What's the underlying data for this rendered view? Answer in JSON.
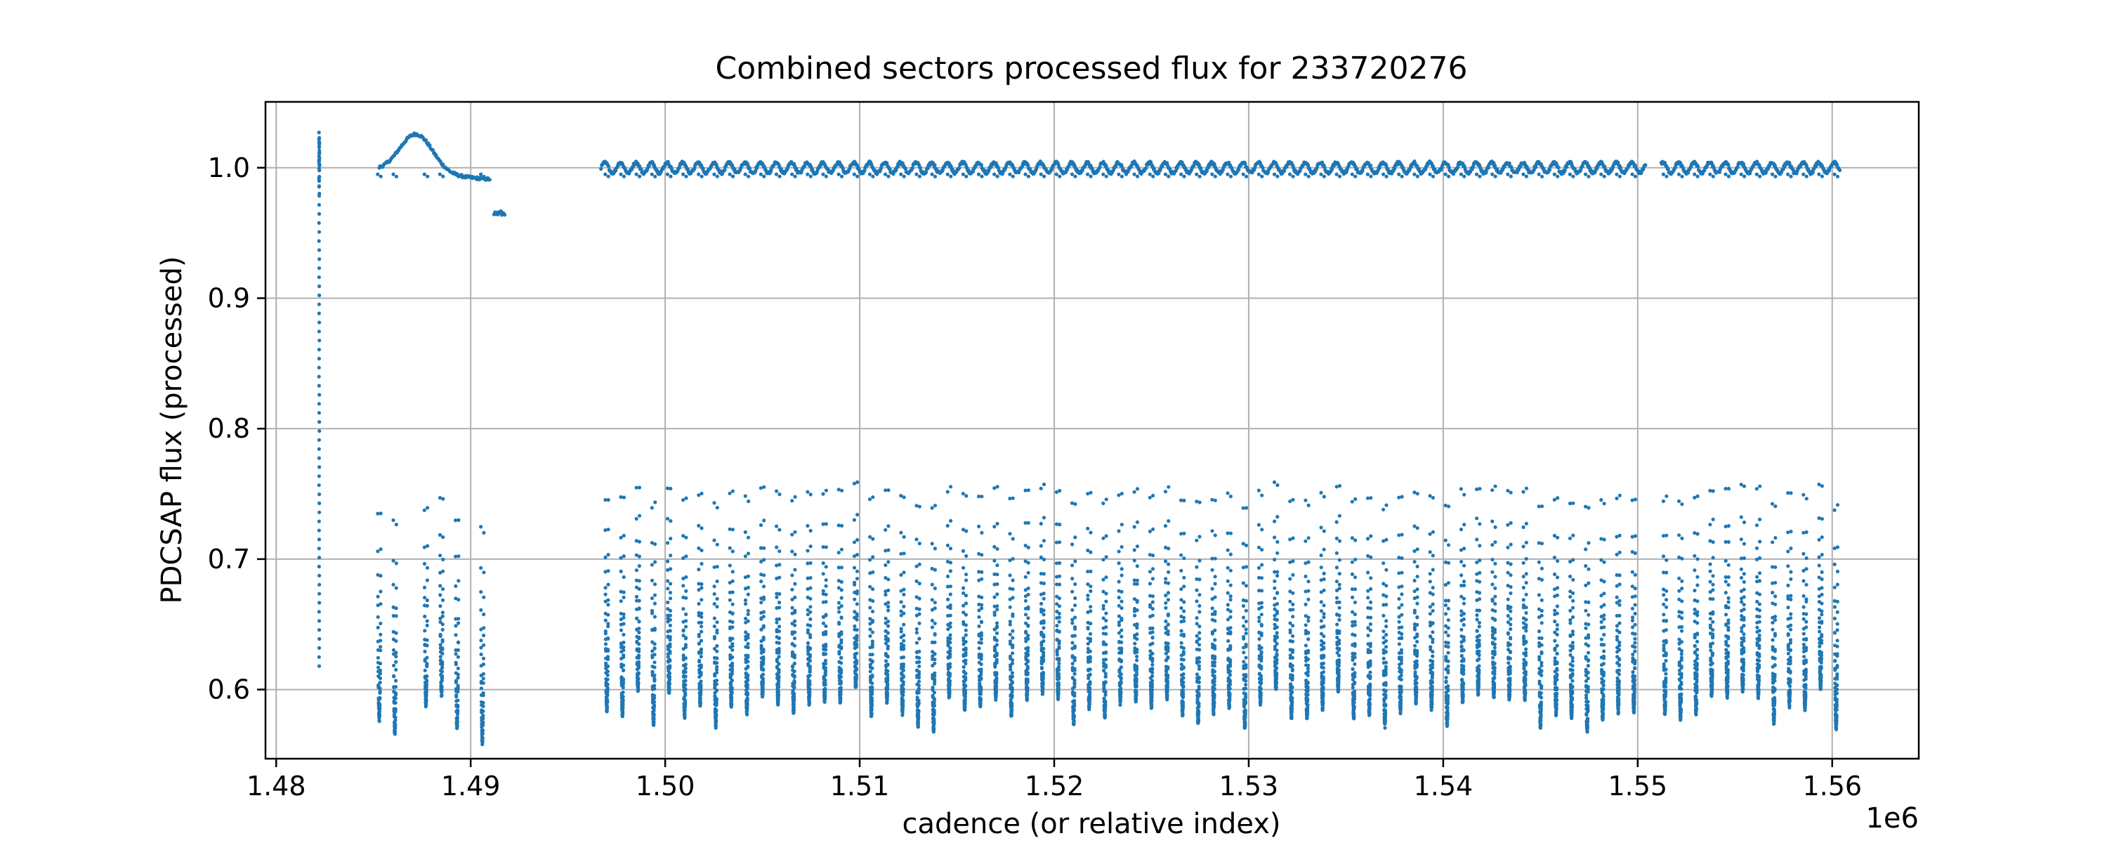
{
  "chart_data": {
    "type": "scatter",
    "title": "Combined sectors processed flux for 233720276",
    "xlabel": "cadence (or relative index)",
    "ylabel": "PDCSAP flux (processed)",
    "x_offset_label": "1e6",
    "xlim": [
      1.47945,
      1.56445
    ],
    "ylim": [
      0.547,
      1.0505
    ],
    "x_ticks": [
      1.48,
      1.49,
      1.5,
      1.51,
      1.52,
      1.53,
      1.54,
      1.55,
      1.56
    ],
    "x_tick_labels": [
      "1.48",
      "1.49",
      "1.50",
      "1.51",
      "1.52",
      "1.53",
      "1.54",
      "1.55",
      "1.56"
    ],
    "y_ticks": [
      0.6,
      0.7,
      0.8,
      0.9,
      1.0
    ],
    "y_tick_labels": [
      "0.6",
      "0.7",
      "0.8",
      "0.9",
      "1.0"
    ],
    "grid": true,
    "marker_color": "#1f77b4",
    "series": [
      {
        "segments": [
          {
            "x_start": 1.4822,
            "x_end": 1.4824,
            "baseline": 1.0,
            "dips": [
              {
                "x": 1.48222,
                "min": 0.618
              }
            ],
            "peak": {
              "x": 1.48222,
              "max": 1.027
            }
          },
          {
            "x_start": 1.4853,
            "x_end": 1.491,
            "baseline": 0.995,
            "dips": [
              {
                "x": 1.4853,
                "min": 0.575
              },
              {
                "x": 1.4861,
                "min": 0.565
              },
              {
                "x": 1.4877,
                "min": 0.585
              },
              {
                "x": 1.4885,
                "min": 0.595
              },
              {
                "x": 1.4893,
                "min": 0.568
              },
              {
                "x": 1.4906,
                "min": 0.557
              }
            ],
            "bump": {
              "x": 1.4872,
              "max": 1.024
            }
          },
          {
            "x_start": 1.4912,
            "x_end": 1.4918,
            "baseline": 0.965,
            "dips": []
          },
          {
            "x_start": 1.4967,
            "x_end": 1.5604,
            "baseline": 1.0,
            "period": 0.0008,
            "min_range": [
              0.565,
              0.6
            ],
            "gap": [
              1.5504,
              1.5512
            ]
          }
        ]
      }
    ]
  }
}
